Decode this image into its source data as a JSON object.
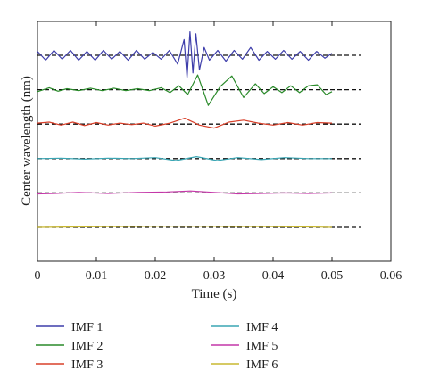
{
  "chart_data": {
    "type": "line",
    "xlabel": "Time (s)",
    "ylabel": "Center wavelength (nm)",
    "xlim": [
      0,
      0.06
    ],
    "x_ticks": [
      "0",
      "0.01",
      "0.02",
      "0.03",
      "0.04",
      "0.05",
      "0.06"
    ],
    "y_ticks_shown": false,
    "grid": false,
    "signal_end": 0.05,
    "baseline_end": 0.055,
    "baseline_style": "black dashed line",
    "legend_position": "below plot, two columns",
    "series": [
      {
        "name": "IMF 1",
        "color": "#3d3daa",
        "offset": 1,
        "description": "high-frequency oscillation, burst around 0.026 s",
        "points": [
          [
            0,
            0.4
          ],
          [
            0.0014,
            -0.5
          ],
          [
            0.0028,
            0.5
          ],
          [
            0.0042,
            -0.4
          ],
          [
            0.0056,
            0.5
          ],
          [
            0.007,
            -0.5
          ],
          [
            0.0084,
            0.4
          ],
          [
            0.0098,
            -0.5
          ],
          [
            0.0112,
            0.5
          ],
          [
            0.0126,
            -0.4
          ],
          [
            0.014,
            0.4
          ],
          [
            0.0154,
            -0.5
          ],
          [
            0.0168,
            0.5
          ],
          [
            0.0182,
            -0.4
          ],
          [
            0.0196,
            0.3
          ],
          [
            0.021,
            -0.4
          ],
          [
            0.0224,
            0.5
          ],
          [
            0.0238,
            -0.9
          ],
          [
            0.0249,
            1.6
          ],
          [
            0.0254,
            -2.3
          ],
          [
            0.0259,
            2.4
          ],
          [
            0.0264,
            -1.8
          ],
          [
            0.0269,
            2.2
          ],
          [
            0.0275,
            -1.5
          ],
          [
            0.0283,
            0.8
          ],
          [
            0.0292,
            -0.5
          ],
          [
            0.0306,
            0.5
          ],
          [
            0.032,
            -0.6
          ],
          [
            0.0334,
            0.5
          ],
          [
            0.0348,
            -0.4
          ],
          [
            0.0362,
            0.8
          ],
          [
            0.0376,
            -0.5
          ],
          [
            0.039,
            0.4
          ],
          [
            0.0404,
            -0.4
          ],
          [
            0.0418,
            0.5
          ],
          [
            0.0432,
            -0.4
          ],
          [
            0.0446,
            0.4
          ],
          [
            0.046,
            -0.5
          ],
          [
            0.0474,
            0.4
          ],
          [
            0.0488,
            -0.3
          ],
          [
            0.05,
            0.2
          ]
        ]
      },
      {
        "name": "IMF 2",
        "color": "#2a8a2a",
        "offset": 2,
        "description": "medium-frequency oscillation, larger swings near 0.027–0.033 s",
        "points": [
          [
            0,
            -0.2
          ],
          [
            0.002,
            0.2
          ],
          [
            0.0035,
            -0.15
          ],
          [
            0.005,
            0.1
          ],
          [
            0.007,
            -0.1
          ],
          [
            0.009,
            0.15
          ],
          [
            0.011,
            -0.1
          ],
          [
            0.013,
            0.15
          ],
          [
            0.015,
            -0.1
          ],
          [
            0.017,
            0.1
          ],
          [
            0.019,
            -0.1
          ],
          [
            0.021,
            0.2
          ],
          [
            0.0225,
            -0.3
          ],
          [
            0.024,
            0.4
          ],
          [
            0.0255,
            -0.5
          ],
          [
            0.0272,
            1.5
          ],
          [
            0.029,
            -1.6
          ],
          [
            0.031,
            0.3
          ],
          [
            0.033,
            1.4
          ],
          [
            0.035,
            -0.8
          ],
          [
            0.037,
            0.6
          ],
          [
            0.0385,
            -0.4
          ],
          [
            0.04,
            0.3
          ],
          [
            0.0415,
            -0.3
          ],
          [
            0.043,
            0.4
          ],
          [
            0.0445,
            -0.3
          ],
          [
            0.046,
            0.4
          ],
          [
            0.0475,
            0.5
          ],
          [
            0.049,
            -0.5
          ],
          [
            0.05,
            -0.2
          ]
        ]
      },
      {
        "name": "IMF 3",
        "color": "#d8402a",
        "offset": 3,
        "description": "lower-frequency oscillation",
        "points": [
          [
            0,
            0.1
          ],
          [
            0.002,
            0.2
          ],
          [
            0.004,
            -0.1
          ],
          [
            0.006,
            0.2
          ],
          [
            0.008,
            -0.15
          ],
          [
            0.01,
            0.15
          ],
          [
            0.012,
            -0.1
          ],
          [
            0.014,
            0.1
          ],
          [
            0.016,
            -0.05
          ],
          [
            0.018,
            0.1
          ],
          [
            0.02,
            -0.2
          ],
          [
            0.0225,
            0.1
          ],
          [
            0.025,
            0.6
          ],
          [
            0.0275,
            -0.1
          ],
          [
            0.03,
            -0.4
          ],
          [
            0.0325,
            0.2
          ],
          [
            0.035,
            0.4
          ],
          [
            0.0375,
            0.1
          ],
          [
            0.04,
            -0.1
          ],
          [
            0.0425,
            0.15
          ],
          [
            0.045,
            -0.1
          ],
          [
            0.0475,
            0.15
          ],
          [
            0.05,
            0.1
          ]
        ]
      },
      {
        "name": "IMF 4",
        "color": "#3aa6b4",
        "offset": 4,
        "description": "slow oscillation, small amplitude",
        "points": [
          [
            0,
            0
          ],
          [
            0.004,
            0.05
          ],
          [
            0.008,
            -0.05
          ],
          [
            0.012,
            0.05
          ],
          [
            0.016,
            0
          ],
          [
            0.02,
            0.1
          ],
          [
            0.0235,
            -0.2
          ],
          [
            0.027,
            0.2
          ],
          [
            0.0305,
            -0.2
          ],
          [
            0.034,
            0.1
          ],
          [
            0.038,
            -0.1
          ],
          [
            0.042,
            0.1
          ],
          [
            0.046,
            0
          ],
          [
            0.05,
            0
          ]
        ]
      },
      {
        "name": "IMF 5",
        "color": "#c437a8",
        "offset": 5,
        "description": "very slow oscillation",
        "points": [
          [
            0,
            -0.1
          ],
          [
            0.003,
            -0.05
          ],
          [
            0.007,
            0.05
          ],
          [
            0.012,
            -0.05
          ],
          [
            0.017,
            0.05
          ],
          [
            0.022,
            0.1
          ],
          [
            0.026,
            0.2
          ],
          [
            0.03,
            0.05
          ],
          [
            0.034,
            -0.1
          ],
          [
            0.038,
            -0.05
          ],
          [
            0.042,
            0
          ],
          [
            0.046,
            -0.05
          ],
          [
            0.05,
            0
          ]
        ]
      },
      {
        "name": "IMF 6",
        "color": "#c9b830",
        "offset": 6,
        "description": "trend component",
        "points": [
          [
            0,
            0
          ],
          [
            0.008,
            0.05
          ],
          [
            0.016,
            0.1
          ],
          [
            0.024,
            0.12
          ],
          [
            0.032,
            0.1
          ],
          [
            0.04,
            0.08
          ],
          [
            0.048,
            0.03
          ],
          [
            0.05,
            0
          ]
        ]
      }
    ]
  }
}
